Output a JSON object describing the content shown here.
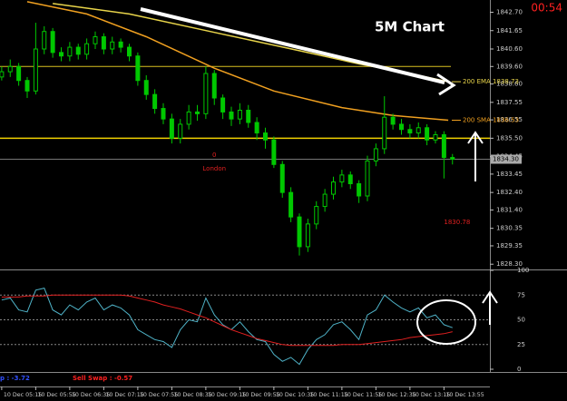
{
  "chart_data": {
    "type": "candlestick",
    "title": "5M Chart",
    "clock": "00:54",
    "color": "#00c800",
    "x": [
      0,
      10,
      20,
      30,
      40,
      50,
      60,
      70,
      80,
      90,
      100,
      110,
      120,
      130,
      140,
      150,
      160,
      170,
      180,
      190,
      200,
      210,
      220,
      230,
      240,
      250,
      260,
      270,
      280,
      290,
      300,
      310,
      320,
      330,
      340,
      350,
      360,
      370,
      380,
      390,
      400,
      410,
      420,
      430,
      440,
      450,
      460,
      470,
      480,
      490,
      500,
      510,
      520,
      530
    ],
    "open": [
      1839.0,
      1839.3,
      1839.6,
      1838.8,
      1838.2,
      1840.6,
      1841.6,
      1840.4,
      1840.2,
      1840.7,
      1840.3,
      1840.9,
      1841.3,
      1840.6,
      1841.0,
      1840.7,
      1840.2,
      1838.8,
      1838.0,
      1837.2,
      1836.6,
      1835.5,
      1836.3,
      1837.0,
      1836.9,
      1839.2,
      1837.8,
      1837.0,
      1836.6,
      1837.1,
      1836.4,
      1835.8,
      1835.4,
      1834.0,
      1832.4,
      1831.0,
      1829.3,
      1830.6,
      1831.6,
      1832.3,
      1833.0,
      1833.4,
      1832.9,
      1832.2,
      1834.2,
      1834.9,
      1836.7,
      1836.3,
      1836.0,
      1835.8,
      1836.1,
      1835.4,
      1835.7,
      1834.4
    ],
    "high": [
      1839.6,
      1840.0,
      1839.8,
      1839.0,
      1842.1,
      1841.9,
      1841.8,
      1840.7,
      1841.0,
      1840.9,
      1841.2,
      1841.6,
      1841.5,
      1841.3,
      1841.2,
      1840.9,
      1840.4,
      1839.1,
      1838.3,
      1837.5,
      1836.9,
      1836.6,
      1837.4,
      1837.4,
      1839.6,
      1839.4,
      1838.0,
      1837.3,
      1837.5,
      1837.4,
      1836.7,
      1836.1,
      1835.6,
      1834.2,
      1832.7,
      1831.2,
      1830.9,
      1831.9,
      1832.6,
      1833.3,
      1833.7,
      1833.6,
      1833.1,
      1834.5,
      1835.2,
      1837.9,
      1836.9,
      1836.6,
      1836.3,
      1836.4,
      1836.3,
      1835.9,
      1835.9,
      1834.6
    ],
    "low": [
      1838.8,
      1839.0,
      1838.5,
      1837.8,
      1838.0,
      1840.3,
      1840.1,
      1839.9,
      1839.9,
      1840.0,
      1840.0,
      1840.6,
      1840.3,
      1840.3,
      1840.4,
      1839.9,
      1838.5,
      1837.7,
      1836.9,
      1836.3,
      1835.2,
      1835.2,
      1836.0,
      1836.5,
      1836.6,
      1837.4,
      1836.6,
      1836.2,
      1836.3,
      1836.1,
      1835.4,
      1834.9,
      1833.8,
      1832.1,
      1830.7,
      1828.8,
      1829.0,
      1830.3,
      1831.3,
      1832.0,
      1832.7,
      1832.6,
      1831.8,
      1831.9,
      1833.9,
      1834.6,
      1836.0,
      1835.7,
      1835.5,
      1835.5,
      1835.1,
      1835.2,
      1833.2,
      1834.0
    ],
    "close": [
      1839.3,
      1839.6,
      1838.8,
      1838.2,
      1840.6,
      1841.6,
      1840.4,
      1840.2,
      1840.7,
      1840.3,
      1840.9,
      1841.3,
      1840.6,
      1841.0,
      1840.7,
      1840.2,
      1838.8,
      1838.0,
      1837.2,
      1836.6,
      1835.5,
      1836.3,
      1837.0,
      1836.9,
      1839.2,
      1837.8,
      1837.0,
      1836.6,
      1837.1,
      1836.4,
      1835.8,
      1835.4,
      1834.0,
      1832.4,
      1831.0,
      1829.3,
      1830.6,
      1831.6,
      1832.3,
      1833.0,
      1833.4,
      1832.9,
      1832.2,
      1834.2,
      1834.9,
      1836.7,
      1836.3,
      1836.0,
      1835.8,
      1836.1,
      1835.4,
      1835.7,
      1834.4,
      1834.3
    ],
    "xlim": [
      -2,
      574
    ],
    "ylim": [
      1828.0,
      1843.4
    ],
    "yticks": [
      {
        "value": 1842.7,
        "label": "1842.70"
      },
      {
        "value": 1841.65,
        "label": "1841.65"
      },
      {
        "value": 1840.6,
        "label": "1840.60"
      },
      {
        "value": 1839.6,
        "label": "1839.60"
      },
      {
        "value": 1838.6,
        "label": "1838.60"
      },
      {
        "value": 1837.55,
        "label": "1837.55"
      },
      {
        "value": 1836.55,
        "label": "1836.55"
      },
      {
        "value": 1835.5,
        "label": "1835.50"
      },
      {
        "value": 1834.45,
        "label": "1834.45"
      },
      {
        "value": 1833.45,
        "label": "1833.45"
      },
      {
        "value": 1832.4,
        "label": "1832.40"
      },
      {
        "value": 1831.4,
        "label": "1831.40"
      },
      {
        "value": 1830.35,
        "label": "1830.35"
      },
      {
        "value": 1829.35,
        "label": "1829.35"
      },
      {
        "value": 1828.3,
        "label": "1828.30"
      }
    ],
    "xticks": [
      {
        "value": 0,
        "label": "10 Dec 05:15"
      },
      {
        "value": 40,
        "label": "10 Dec 05:55"
      },
      {
        "value": 80,
        "label": "10 Dec 06:35"
      },
      {
        "value": 120,
        "label": "10 Dec 07:15"
      },
      {
        "value": 160,
        "label": "10 Dec 07:55"
      },
      {
        "value": 200,
        "label": "10 Dec 08:35"
      },
      {
        "value": 240,
        "label": "10 Dec 09:15"
      },
      {
        "value": 280,
        "label": "10 Dec 09:55"
      },
      {
        "value": 320,
        "label": "10 Dec 10:35"
      },
      {
        "value": 360,
        "label": "10 Dec 11:15"
      },
      {
        "value": 400,
        "label": "10 Dec 11:55"
      },
      {
        "value": 440,
        "label": "10 Dec 12:35"
      },
      {
        "value": 480,
        "label": "10 Dec 13:15"
      },
      {
        "value": 520,
        "label": "10 Dec 13:55"
      }
    ],
    "lines": [
      {
        "name": "200 EMA 1838.73",
        "color": "#e8d44a",
        "x": [
          60,
          150,
          250,
          350,
          420,
          480,
          525
        ],
        "values": [
          1843.2,
          1842.6,
          1841.55,
          1840.5,
          1839.75,
          1839.2,
          1838.73
        ]
      },
      {
        "name": "200 SMA 1836.53",
        "color": "#f0a020",
        "x": [
          30,
          100,
          170,
          250,
          320,
          400,
          460,
          525
        ],
        "values": [
          1843.3,
          1842.6,
          1841.3,
          1839.5,
          1838.2,
          1837.25,
          1836.8,
          1836.53
        ]
      }
    ],
    "levels": [
      {
        "value": 1839.6,
        "color": "#d8c020"
      },
      {
        "value": 1835.5,
        "color": "#f0d000"
      }
    ],
    "price_tag": {
      "value": 1834.3,
      "label": "1834.30"
    },
    "annotations": [
      "0",
      "London",
      "1830.78"
    ],
    "indicator": {
      "ylim": [
        0,
        100
      ],
      "yticks": [
        100,
        75,
        50,
        25,
        0
      ],
      "series": [
        {
          "color": "#4fb3c8",
          "values": [
            70,
            72,
            60,
            58,
            80,
            82,
            60,
            55,
            65,
            60,
            68,
            72,
            60,
            65,
            62,
            55,
            40,
            35,
            30,
            28,
            22,
            40,
            50,
            48,
            72,
            55,
            45,
            40,
            48,
            38,
            30,
            28,
            15,
            8,
            12,
            5,
            20,
            30,
            35,
            45,
            48,
            40,
            30,
            55,
            60,
            75,
            68,
            62,
            58,
            62,
            52,
            55,
            45,
            42
          ]
        },
        {
          "color": "#e02020",
          "values": [
            73,
            73,
            73,
            74,
            74,
            74,
            75,
            75,
            75,
            75,
            75,
            75,
            75,
            75,
            75,
            74,
            72,
            70,
            68,
            65,
            63,
            61,
            58,
            55,
            52,
            48,
            44,
            40,
            37,
            34,
            31,
            29,
            27,
            25,
            24,
            24,
            24,
            24,
            24,
            24,
            25,
            25,
            25,
            26,
            27,
            28,
            29,
            30,
            32,
            33,
            34,
            35,
            36,
            38
          ]
        }
      ]
    },
    "footer": [
      {
        "text": "p : -3.72",
        "color": "#3050ff"
      },
      {
        "text": "Sell Swap : -0.57",
        "color": "#ff2020"
      }
    ]
  }
}
